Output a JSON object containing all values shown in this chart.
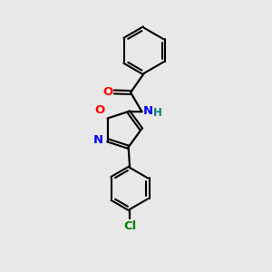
{
  "bg_color": "#e8e8e8",
  "bond_color": "#000000",
  "atom_colors": {
    "O": "#ff0000",
    "N": "#0000ff",
    "Cl": "#008000",
    "C": "#000000",
    "H": "#008080"
  },
  "figsize": [
    3.0,
    3.0
  ],
  "dpi": 100
}
